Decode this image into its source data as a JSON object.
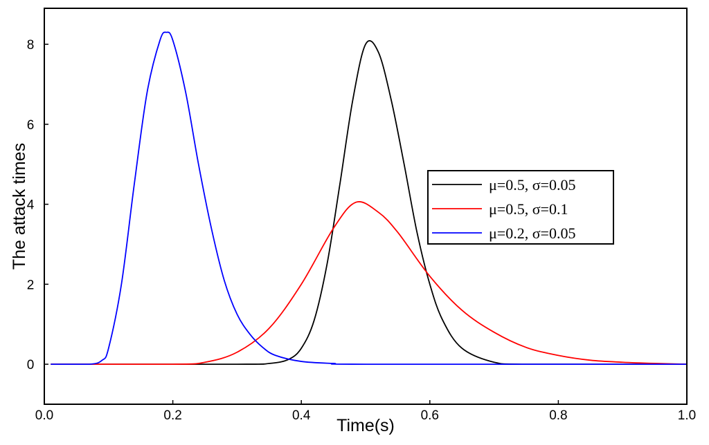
{
  "chart_data": {
    "type": "line",
    "xlabel": "Time(s)",
    "ylabel": "The attack times",
    "xlim": [
      0.0,
      1.0
    ],
    "ylim": [
      -1.0,
      8.9
    ],
    "xticks": [
      0.0,
      0.2,
      0.4,
      0.6,
      0.8,
      1.0
    ],
    "xtick_labels": [
      "0.0",
      "0.2",
      "0.4",
      "0.6",
      "0.8",
      "1.0"
    ],
    "yticks": [
      0,
      2,
      4,
      6,
      8
    ],
    "ytick_labels": [
      "0",
      "2",
      "4",
      "6",
      "8"
    ],
    "grid": false,
    "legend_position": "center-right",
    "series": [
      {
        "name": "μ=0.5, σ=0.05",
        "color": "#000000",
        "x": [
          0.01,
          0.3,
          0.35,
          0.38,
          0.4,
          0.42,
          0.44,
          0.46,
          0.48,
          0.5,
          0.52,
          0.54,
          0.56,
          0.58,
          0.6,
          0.62,
          0.65,
          0.7,
          0.75,
          1.0
        ],
        "y": [
          0,
          0.0,
          0.02,
          0.12,
          0.4,
          1.1,
          2.5,
          4.5,
          6.6,
          8.0,
          7.8,
          6.6,
          5.0,
          3.3,
          2.0,
          1.1,
          0.4,
          0.05,
          0.0,
          0
        ]
      },
      {
        "name": "μ=0.5, σ=0.1",
        "color": "#ff0000",
        "x": [
          0.01,
          0.2,
          0.25,
          0.3,
          0.35,
          0.4,
          0.45,
          0.485,
          0.52,
          0.55,
          0.6,
          0.65,
          0.7,
          0.75,
          0.8,
          0.85,
          0.9,
          0.95,
          1.0
        ],
        "y": [
          0,
          0.0,
          0.05,
          0.3,
          0.9,
          2.0,
          3.4,
          4.05,
          3.8,
          3.3,
          2.2,
          1.35,
          0.8,
          0.42,
          0.22,
          0.1,
          0.05,
          0.02,
          0
        ]
      },
      {
        "name": "μ=0.2, σ=0.05",
        "color": "#0000ff",
        "x": [
          0.01,
          0.07,
          0.09,
          0.1,
          0.12,
          0.14,
          0.16,
          0.18,
          0.19,
          0.2,
          0.22,
          0.24,
          0.26,
          0.28,
          0.3,
          0.32,
          0.34,
          0.36,
          0.4,
          0.45,
          0.5,
          1.0
        ],
        "y": [
          0,
          0.0,
          0.1,
          0.4,
          2.0,
          4.5,
          6.8,
          8.1,
          8.3,
          8.1,
          6.8,
          5.0,
          3.4,
          2.1,
          1.25,
          0.75,
          0.42,
          0.22,
          0.07,
          0.02,
          0.0,
          0
        ]
      }
    ]
  }
}
